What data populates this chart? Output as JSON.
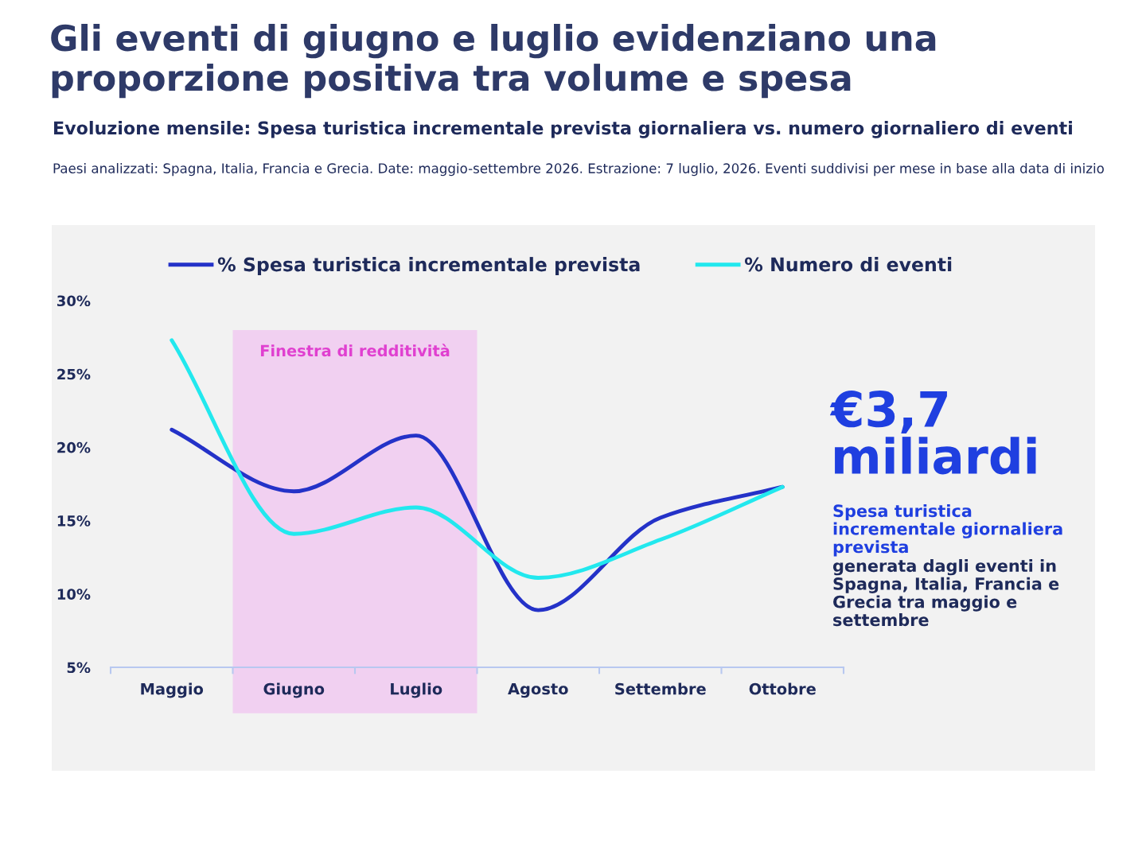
{
  "chart_data": {
    "type": "line",
    "title": "Gli eventi di giugno e luglio evidenziano una proporzione positiva tra volume e spesa",
    "subtitle": "Evoluzione mensile: Spesa turistica incrementale prevista giornaliera vs. numero giornaliero di eventi",
    "categories": [
      "Maggio",
      "Giugno",
      "Luglio",
      "Agosto",
      "Settembre",
      "Ottobre"
    ],
    "series": [
      {
        "name": "% Spesa turistica incrementale prevista",
        "color": "#2432c8",
        "values": [
          21.2,
          17.0,
          20.8,
          8.9,
          15.2,
          17.3
        ]
      },
      {
        "name": "% Numero di eventi",
        "color": "#22e8ee",
        "values": [
          27.3,
          14.1,
          15.9,
          11.1,
          13.7,
          17.3
        ]
      }
    ],
    "ylim": [
      5,
      30
    ],
    "yticks": [
      {
        "value": 5,
        "label": "5%"
      },
      {
        "value": 10,
        "label": "10%"
      },
      {
        "value": 15,
        "label": "15%"
      },
      {
        "value": 20,
        "label": "20%"
      },
      {
        "value": 25,
        "label": "25%"
      },
      {
        "value": 30,
        "label": "30%"
      }
    ],
    "bands": [
      {
        "axis": "x",
        "from": "Giugno",
        "to": "Luglio",
        "label": "Finestra di redditività",
        "color": "#f0c4f0"
      }
    ],
    "annotations": [
      "Paesi analizzati: Spagna, Italia, Francia e Grecia. Date: maggio-settembre 2026. Estrazione: 7 luglio, 2026. Eventi suddivisi per mese in base alla data di inizio",
      "€3,7 miliardi",
      "Spesa turistica incrementale giornaliera prevista",
      "generata dagli eventi in Spagna, Italia, Francia e Grecia tra maggio e settembre"
    ],
    "legend": "top",
    "grid": false,
    "marker": "none",
    "line_style": "solid"
  }
}
